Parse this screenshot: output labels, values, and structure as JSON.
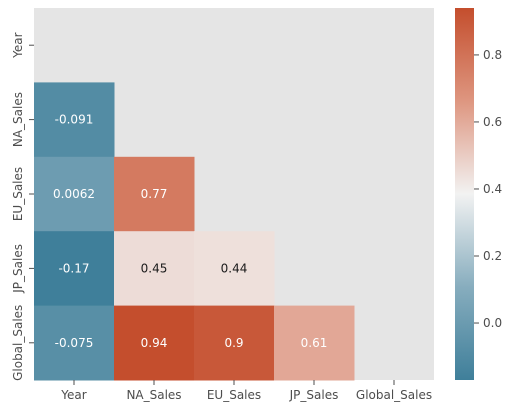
{
  "chart_data": {
    "type": "heatmap",
    "title": "",
    "xlabel": "",
    "ylabel": "",
    "x_categories": [
      "Year",
      "NA_Sales",
      "EU_Sales",
      "JP_Sales",
      "Global_Sales"
    ],
    "y_categories": [
      "Year",
      "NA_Sales",
      "EU_Sales",
      "JP_Sales",
      "Global_Sales"
    ],
    "mask": "upper triangle including diagonal",
    "cells": [
      {
        "row": "NA_Sales",
        "col": "Year",
        "value": -0.091,
        "label": "-0.091"
      },
      {
        "row": "EU_Sales",
        "col": "Year",
        "value": 0.0062,
        "label": "0.0062"
      },
      {
        "row": "EU_Sales",
        "col": "NA_Sales",
        "value": 0.77,
        "label": "0.77"
      },
      {
        "row": "JP_Sales",
        "col": "Year",
        "value": -0.17,
        "label": "-0.17"
      },
      {
        "row": "JP_Sales",
        "col": "NA_Sales",
        "value": 0.45,
        "label": "0.45"
      },
      {
        "row": "JP_Sales",
        "col": "EU_Sales",
        "value": 0.44,
        "label": "0.44"
      },
      {
        "row": "Global_Sales",
        "col": "Year",
        "value": -0.075,
        "label": "-0.075"
      },
      {
        "row": "Global_Sales",
        "col": "NA_Sales",
        "value": 0.94,
        "label": "0.94"
      },
      {
        "row": "Global_Sales",
        "col": "EU_Sales",
        "value": 0.9,
        "label": "0.9"
      },
      {
        "row": "Global_Sales",
        "col": "JP_Sales",
        "value": 0.61,
        "label": "0.61"
      }
    ],
    "colorbar": {
      "vmin": -0.17,
      "vmax": 0.94,
      "ticks": [
        0.0,
        0.2,
        0.4,
        0.6,
        0.8
      ],
      "tick_labels": [
        "0.0",
        "0.2",
        "0.4",
        "0.6",
        "0.8"
      ],
      "colormap": "diverging blue-white-red",
      "colors": {
        "low": "#3f7f9a",
        "mid": "#f2f2f2",
        "high": "#c44e2d"
      }
    },
    "background_color": "#e5e5e5",
    "grid": false
  }
}
